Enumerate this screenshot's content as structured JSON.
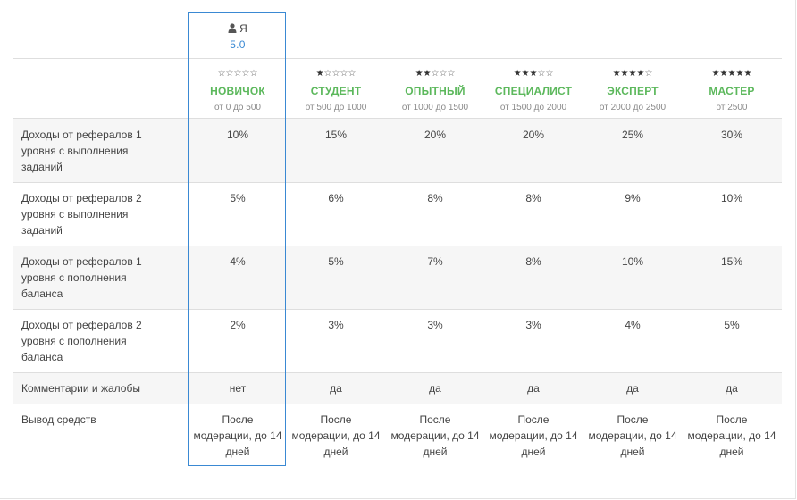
{
  "me": {
    "label": "Я",
    "score": "5.0"
  },
  "levels": [
    {
      "name": "НОВИЧОК",
      "range": "от 0 до 500",
      "stars": 0
    },
    {
      "name": "СТУДЕНТ",
      "range": "от 500 до 1000",
      "stars": 1
    },
    {
      "name": "ОПЫТНЫЙ",
      "range": "от 1000 до 1500",
      "stars": 2
    },
    {
      "name": "СПЕЦИАЛИСТ",
      "range": "от 1500 до 2000",
      "stars": 3
    },
    {
      "name": "ЭКСПЕРТ",
      "range": "от 2000 до 2500",
      "stars": 4
    },
    {
      "name": "МАСТЕР",
      "range": "от 2500",
      "stars": 5
    }
  ],
  "rows": [
    {
      "label": "Доходы от рефералов 1 уровня с выполнения заданий",
      "values": [
        "10%",
        "15%",
        "20%",
        "20%",
        "25%",
        "30%"
      ]
    },
    {
      "label": "Доходы от рефералов 2 уровня с выполнения заданий",
      "values": [
        "5%",
        "6%",
        "8%",
        "8%",
        "9%",
        "10%"
      ]
    },
    {
      "label": "Доходы от рефералов 1 уровня с пополнения баланса",
      "values": [
        "4%",
        "5%",
        "7%",
        "8%",
        "10%",
        "15%"
      ]
    },
    {
      "label": "Доходы от рефералов 2 уровня с пополнения баланса",
      "values": [
        "2%",
        "3%",
        "3%",
        "3%",
        "4%",
        "5%"
      ]
    },
    {
      "label": "Комментарии и жалобы",
      "values": [
        "нет",
        "да",
        "да",
        "да",
        "да",
        "да"
      ]
    },
    {
      "label": "Вывод средств",
      "values": [
        "После модерации, до 14 дней",
        "После модерации, до 14 дней",
        "После модерации, до 14 дней",
        "После модерации, до 14 дней",
        "После модерации, до 14 дней",
        "После модерации, до 14 дней"
      ]
    }
  ],
  "colors": {
    "level_green": "#5cb85c",
    "highlight_blue": "#3a89d3",
    "stripe": "#f6f6f6"
  },
  "icons": {
    "user": "user-icon",
    "star_full": "star-filled-icon",
    "star_empty": "star-outline-icon"
  }
}
